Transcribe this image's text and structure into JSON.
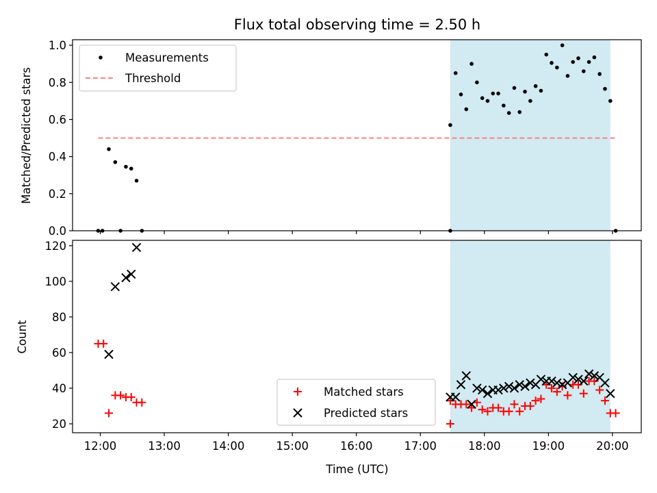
{
  "figure": {
    "title": "Flux total observing time = 2.50 h",
    "shaded_interval": [
      "17:28",
      "19:58"
    ],
    "shade_color": "#add8e6",
    "x_axis": {
      "label": "Time (UTC)",
      "ticks": [
        "12:00",
        "13:00",
        "14:00",
        "15:00",
        "16:00",
        "17:00",
        "18:00",
        "19:00",
        "20:00"
      ],
      "range": [
        "11:34",
        "20:27"
      ]
    }
  },
  "chart_data": [
    {
      "type": "scatter",
      "ylabel": "Matched/Predicted stars",
      "ylim": [
        0,
        1.03
      ],
      "yticks": [
        "0.0",
        "0.2",
        "0.4",
        "0.6",
        "0.8",
        "1.0"
      ],
      "legend_position": "top-left",
      "series": [
        {
          "name": "Measurements",
          "color": "#000000",
          "marker": "dot",
          "points": [
            [
              "11:58",
              0.0
            ],
            [
              "12:02",
              0.0
            ],
            [
              "12:08",
              0.44
            ],
            [
              "12:14",
              0.37
            ],
            [
              "12:19",
              0.0
            ],
            [
              "12:24",
              0.345
            ],
            [
              "12:29",
              0.335
            ],
            [
              "12:34",
              0.27
            ],
            [
              "12:39",
              0.0
            ],
            [
              "17:28",
              0.0
            ],
            [
              "17:28",
              0.57
            ],
            [
              "17:33",
              0.85
            ],
            [
              "17:38",
              0.735
            ],
            [
              "17:43",
              0.655
            ],
            [
              "17:48",
              0.9
            ],
            [
              "17:53",
              0.8
            ],
            [
              "17:58",
              0.715
            ],
            [
              "18:03",
              0.7
            ],
            [
              "18:08",
              0.74
            ],
            [
              "18:13",
              0.74
            ],
            [
              "18:18",
              0.675
            ],
            [
              "18:23",
              0.635
            ],
            [
              "18:28",
              0.77
            ],
            [
              "18:33",
              0.64
            ],
            [
              "18:38",
              0.75
            ],
            [
              "18:43",
              0.7
            ],
            [
              "18:48",
              0.78
            ],
            [
              "18:53",
              0.755
            ],
            [
              "18:58",
              0.95
            ],
            [
              "19:03",
              0.905
            ],
            [
              "19:08",
              0.88
            ],
            [
              "19:13",
              1.0
            ],
            [
              "19:18",
              0.835
            ],
            [
              "19:23",
              0.91
            ],
            [
              "19:28",
              0.93
            ],
            [
              "19:33",
              0.86
            ],
            [
              "19:38",
              0.91
            ],
            [
              "19:43",
              0.935
            ],
            [
              "19:48",
              0.845
            ],
            [
              "19:53",
              0.765
            ],
            [
              "19:58",
              0.7
            ],
            [
              "20:03",
              0.0
            ]
          ]
        },
        {
          "name": "Threshold",
          "color": "#ff7f7f",
          "style": "dashed",
          "points": [
            [
              "11:58",
              0.5
            ],
            [
              "20:03",
              0.5
            ]
          ]
        }
      ]
    },
    {
      "type": "scatter",
      "ylabel": "Count",
      "ylim": [
        15,
        123
      ],
      "yticks": [
        "20",
        "40",
        "60",
        "80",
        "100",
        "120"
      ],
      "legend_position": "lower-center",
      "series": [
        {
          "name": "Matched stars",
          "color": "#ff0000",
          "marker": "plus",
          "points": [
            [
              "11:58",
              65
            ],
            [
              "12:03",
              65
            ],
            [
              "12:08",
              26
            ],
            [
              "12:14",
              36
            ],
            [
              "12:19",
              36
            ],
            [
              "12:24",
              35
            ],
            [
              "12:29",
              35
            ],
            [
              "12:34",
              32
            ],
            [
              "12:39",
              32
            ],
            [
              "17:28",
              20
            ],
            [
              "17:28",
              33
            ],
            [
              "17:33",
              31
            ],
            [
              "17:38",
              31
            ],
            [
              "17:43",
              31
            ],
            [
              "17:48",
              29
            ],
            [
              "17:53",
              32
            ],
            [
              "17:58",
              28
            ],
            [
              "18:03",
              27
            ],
            [
              "18:08",
              29
            ],
            [
              "18:13",
              29
            ],
            [
              "18:18",
              27
            ],
            [
              "18:23",
              27
            ],
            [
              "18:28",
              31
            ],
            [
              "18:33",
              27
            ],
            [
              "18:38",
              30
            ],
            [
              "18:43",
              30
            ],
            [
              "18:48",
              33
            ],
            [
              "18:53",
              34
            ],
            [
              "18:58",
              42
            ],
            [
              "19:03",
              40
            ],
            [
              "19:08",
              38
            ],
            [
              "19:13",
              41
            ],
            [
              "19:18",
              36
            ],
            [
              "19:23",
              42
            ],
            [
              "19:28",
              42
            ],
            [
              "19:33",
              37
            ],
            [
              "19:38",
              44
            ],
            [
              "19:43",
              44
            ],
            [
              "19:48",
              39
            ],
            [
              "19:53",
              33
            ],
            [
              "19:58",
              26
            ],
            [
              "20:03",
              26
            ]
          ]
        },
        {
          "name": "Predicted stars",
          "color": "#000000",
          "marker": "x",
          "points": [
            [
              "12:08",
              59
            ],
            [
              "12:14",
              97
            ],
            [
              "12:24",
              102
            ],
            [
              "12:29",
              104
            ],
            [
              "12:34",
              119
            ],
            [
              "17:28",
              35
            ],
            [
              "17:33",
              35
            ],
            [
              "17:38",
              42
            ],
            [
              "17:43",
              47
            ],
            [
              "17:48",
              31
            ],
            [
              "17:53",
              40
            ],
            [
              "17:58",
              39
            ],
            [
              "18:03",
              37
            ],
            [
              "18:08",
              39
            ],
            [
              "18:13",
              39
            ],
            [
              "18:18",
              40
            ],
            [
              "18:23",
              41
            ],
            [
              "18:28",
              40
            ],
            [
              "18:33",
              42
            ],
            [
              "18:38",
              41
            ],
            [
              "18:43",
              43
            ],
            [
              "18:48",
              42
            ],
            [
              "18:53",
              45
            ],
            [
              "18:58",
              44
            ],
            [
              "19:03",
              44
            ],
            [
              "19:08",
              43
            ],
            [
              "19:13",
              42
            ],
            [
              "19:18",
              43
            ],
            [
              "19:23",
              46
            ],
            [
              "19:28",
              45
            ],
            [
              "19:33",
              44
            ],
            [
              "19:38",
              48
            ],
            [
              "19:43",
              47
            ],
            [
              "19:48",
              46
            ],
            [
              "19:53",
              43
            ],
            [
              "19:58",
              37
            ]
          ]
        }
      ]
    }
  ]
}
